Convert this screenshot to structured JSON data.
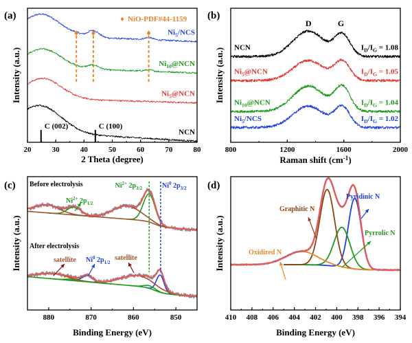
{
  "chart_data": [
    {
      "panel_label": "(a)",
      "type": "line",
      "title": "",
      "xlabel": "2 Theta (degree)",
      "ylabel": "Intensity (a.u.)",
      "xlim": [
        20,
        80
      ],
      "xticks": [
        20,
        30,
        40,
        50,
        60,
        70,
        80
      ],
      "legend": {
        "marker": "♦",
        "text": "NiO-PDF#44-1159",
        "color": "#e8862a",
        "placement": "top-right"
      },
      "nio_reference_peaks": [
        37.3,
        43.3,
        62.9
      ],
      "reference_lines": [
        {
          "x": 24.8,
          "label": "C (002)"
        },
        {
          "x": 44.0,
          "label": "C (100)"
        }
      ],
      "series": [
        {
          "name": "Ni5/NCS",
          "label_main": "Ni",
          "label_sub": "5",
          "label_rest": "/NCS",
          "color": "#1f3fe0",
          "offset": 0.8,
          "peaks": [
            {
              "center": 25,
              "height": 0.16,
              "width": 6.5
            },
            {
              "center": 43.3,
              "height": 0.05,
              "width": 2.0
            },
            {
              "center": 37.3,
              "height": 0.01,
              "width": 1.5
            },
            {
              "center": 62.9,
              "height": 0.015,
              "width": 1.5
            }
          ],
          "baseline_slope": -0.0008
        },
        {
          "name": "Ni10@NCN",
          "label_main": "Ni",
          "label_sub": "10",
          "label_rest": "@NCN",
          "color": "#1c9a1c",
          "offset": 0.56,
          "peaks": [
            {
              "center": 25.5,
              "height": 0.14,
              "width": 6.5
            },
            {
              "center": 43.3,
              "height": 0.03,
              "width": 2.0
            },
            {
              "center": 62.9,
              "height": 0.01,
              "width": 1.5
            }
          ],
          "baseline_slope": -0.0007
        },
        {
          "name": "Ni5@NCN",
          "label_main": "Ni",
          "label_sub": "5",
          "label_rest": "@NCN",
          "color": "#e03838",
          "offset": 0.33,
          "peaks": [
            {
              "center": 25.5,
              "height": 0.15,
              "width": 6.5
            }
          ],
          "baseline_slope": -0.0006
        },
        {
          "name": "NCN",
          "label_main": "NCN",
          "label_sub": "",
          "label_rest": "",
          "color": "#000000",
          "offset": 0.08,
          "peaks": [
            {
              "center": 24.5,
              "height": 0.2,
              "width": 7.5
            }
          ],
          "baseline_slope": -0.0012
        }
      ]
    },
    {
      "panel_label": "(b)",
      "type": "line",
      "title": "",
      "xlabel": "Raman shift (cm",
      "xlabel_sup": "-1",
      "xlabel_end": ")",
      "ylabel": "Intensity (a.u.)",
      "xlim": [
        800,
        2000
      ],
      "xticks": [
        800,
        1200,
        1600,
        2000
      ],
      "band_labels": [
        {
          "x": 1350,
          "label": "D"
        },
        {
          "x": 1580,
          "label": "G"
        }
      ],
      "series": [
        {
          "name": "NCN",
          "label_main": "NCN",
          "label_sub": "",
          "label_rest": "",
          "color": "#000000",
          "offset": 0.64,
          "ratio_label": "1.08",
          "D_height": 0.19,
          "G_height": 0.16
        },
        {
          "name": "Ni5@NCN",
          "label_main": "Ni",
          "label_sub": "5",
          "label_rest": "@NCN",
          "color": "#e03838",
          "offset": 0.46,
          "ratio_label": "1.05",
          "D_height": 0.15,
          "G_height": 0.14
        },
        {
          "name": "Ni10@NCN",
          "label_main": "Ni",
          "label_sub": "10",
          "label_rest": "@NCN",
          "color": "#1c9a1c",
          "offset": 0.23,
          "ratio_label": "1.04",
          "D_height": 0.19,
          "G_height": 0.18
        },
        {
          "name": "Ni5/NCS",
          "label_main": "Ni",
          "label_sub": "5",
          "label_rest": "/NCS",
          "color": "#1f3fe0",
          "offset": 0.11,
          "ratio_label": "1.02",
          "D_height": 0.16,
          "G_height": 0.15
        }
      ],
      "ratio_prefix": "I",
      "ratio_sub1": "D",
      "ratio_mid": "/I",
      "ratio_sub2": "G",
      "ratio_eq": " = "
    },
    {
      "panel_label": "(c)",
      "type": "line",
      "title": "",
      "xlabel": "Binding Energy (eV)",
      "ylabel": "Intensity (a.u.)",
      "xlim": [
        885,
        845
      ],
      "xticks": [
        880,
        870,
        860,
        850
      ],
      "dashed_lines": [
        {
          "x": 856.3,
          "color": "#1c9a1c",
          "label_main": "Ni",
          "label_sup": "2+",
          "label_rest": " 2p",
          "label_sub": "3/2"
        },
        {
          "x": 853.6,
          "color": "#1f3fe0",
          "label_main": "Ni",
          "label_sup": "0",
          "label_rest": " 2p",
          "label_sub": "3/2"
        }
      ],
      "section_labels": [
        "Before electrolysis",
        "After electrolysis"
      ],
      "annotations": [
        {
          "text_main": "Ni",
          "text_sup": "2+",
          "text_rest": " 2p",
          "text_sub": "1/2",
          "color": "#1c9a1c"
        },
        {
          "text_main": "satellite",
          "color": "#a0522d"
        },
        {
          "text_main": "Ni",
          "text_sup": "0",
          "text_rest": " 2p",
          "text_sub": "1/2",
          "color": "#1f3fe0"
        },
        {
          "text_main": "satellite",
          "color": "#a0522d"
        }
      ],
      "colors": {
        "raw": "#8c8c8c",
        "envelope": "#e05a5a",
        "ni2": "#1c9a1c",
        "ni0": "#1f3fe0",
        "satellite": "#a0522d",
        "background": "#a0522d",
        "background_after": "#1c9a1c"
      },
      "before": {
        "offset": 0.6,
        "ni2_peaks": [
          {
            "center": 856.3,
            "height": 0.21,
            "width": 1.4
          },
          {
            "center": 874.0,
            "height": 0.06,
            "width": 1.6
          }
        ],
        "satellite_peaks": [
          {
            "center": 861.5,
            "height": 0.1,
            "width": 3.3
          },
          {
            "center": 880.5,
            "height": 0.06,
            "width": 3.0
          }
        ]
      },
      "after": {
        "offset": 0.1,
        "ni0_peaks": [
          {
            "center": 853.7,
            "height": 0.13,
            "width": 0.9
          },
          {
            "center": 870.9,
            "height": 0.05,
            "width": 1.2
          }
        ],
        "ni2_peaks": [
          {
            "center": 856.2,
            "height": 0.02,
            "width": 1.3
          },
          {
            "center": 874.5,
            "height": 0.01,
            "width": 1.4
          }
        ],
        "satellite_peaks": [
          {
            "center": 859.0,
            "height": 0.08,
            "width": 4.0
          },
          {
            "center": 879.0,
            "height": 0.04,
            "width": 3.5
          }
        ]
      }
    },
    {
      "panel_label": "(d)",
      "type": "line",
      "title": "",
      "xlabel": "Binding Energy (eV)",
      "ylabel": "Intensity (a.u.)",
      "xlim": [
        410,
        394
      ],
      "xticks": [
        410,
        408,
        406,
        404,
        402,
        400,
        398,
        396,
        394
      ],
      "components": [
        {
          "name": "Pyridinic N",
          "center": 398.3,
          "height": 0.53,
          "width": 0.6,
          "color": "#1f3fe0"
        },
        {
          "name": "Pyrrolic N",
          "center": 399.5,
          "height": 0.3,
          "width": 0.75,
          "color": "#1c9a1c"
        },
        {
          "name": "Graphitic N",
          "center": 400.9,
          "height": 0.57,
          "width": 0.7,
          "color": "#8b4513"
        },
        {
          "name": "Oxidized N",
          "center": 403.3,
          "height": 0.1,
          "width": 1.5,
          "color": "#e8862a"
        }
      ],
      "colors": {
        "raw": "#8c8c8c",
        "envelope": "#e05a5a"
      }
    }
  ]
}
